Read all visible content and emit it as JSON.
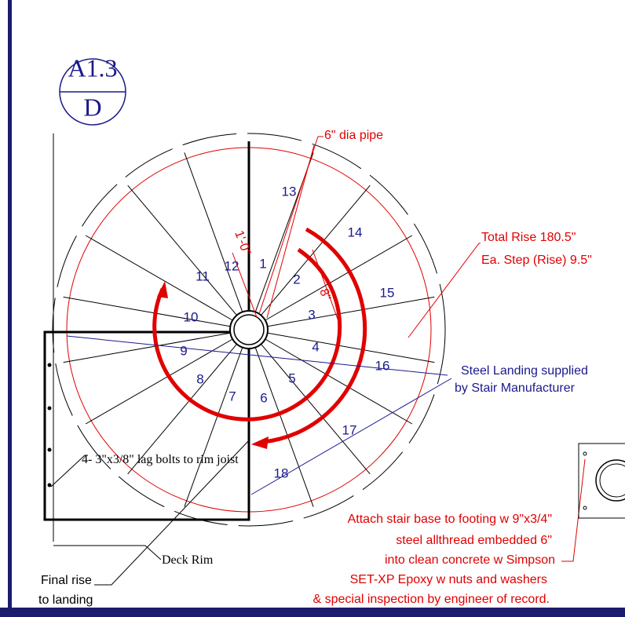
{
  "tag": {
    "sheet": "A1.3",
    "detail": "D"
  },
  "steps": [
    "1",
    "2",
    "3",
    "4",
    "5",
    "6",
    "7",
    "8",
    "9",
    "10",
    "11",
    "12",
    "13",
    "14",
    "15",
    "16",
    "17",
    "18"
  ],
  "dimensions": {
    "radius": "1'-0\"",
    "tread": "8\""
  },
  "notes": {
    "pipe": "6\" dia pipe",
    "rise_total": "Total Rise 180.5\"",
    "rise_step": "Ea. Step (Rise) 9.5\"",
    "landing_1": "Steel Landing supplied",
    "landing_2": "by Stair Manufacturer",
    "bolts": "4- 3\"x3/8\" lag bolts to rim joist",
    "deck_rim": "Deck Rim",
    "final_1": "Final rise",
    "final_2": "to landing",
    "base": [
      "Attach stair base to footing w 9\"x3/4\"",
      "steel allthread embedded 6\"",
      "into clean concrete w Simpson",
      "SET-XP Epoxy w nuts and washers",
      "& special inspection by engineer of record."
    ]
  }
}
